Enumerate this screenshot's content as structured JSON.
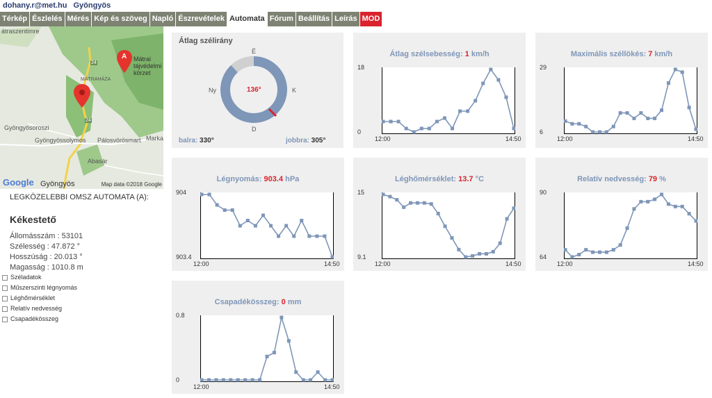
{
  "header": {
    "user": "dohany.r@met.hu",
    "location": "Gyöngyös"
  },
  "nav": [
    {
      "label": "Térkép",
      "state": "normal"
    },
    {
      "label": "Észlelés",
      "state": "normal"
    },
    {
      "label": "Mérés",
      "state": "normal"
    },
    {
      "label": "Kép és szöveg",
      "state": "normal"
    },
    {
      "label": "Napló",
      "state": "normal"
    },
    {
      "label": "Észrevételek",
      "state": "normal"
    },
    {
      "label": "Automata",
      "state": "active"
    },
    {
      "label": "Fórum",
      "state": "normal"
    },
    {
      "label": "Beállítás",
      "state": "normal"
    },
    {
      "label": "Leírás",
      "state": "normal"
    },
    {
      "label": "MOD",
      "state": "red"
    }
  ],
  "map": {
    "labels": [
      "átraszentimre",
      "Mátrai tájvédelmi körzet",
      "MÁTRAHÁZA",
      "Gyöngyösoroszi",
      "Gyöngyössolymos",
      "Pálosvörösmart",
      "Marka",
      "Abasár",
      "Gyöngyös",
      "24",
      "24"
    ],
    "credit": "Map data ©2018 Google",
    "brand": "Google",
    "marker_label": "A"
  },
  "sidebar": {
    "title": "LEGKÖZELEBBI OMSZ AUTOMATA (A):",
    "station": "Kékestető",
    "info": [
      "Állomásszám : 53101",
      "Szélesség : 47.872 °",
      "Hosszúság : 20.013 °",
      "Magasság : 1010.8 m"
    ],
    "checkboxes": [
      "Széladatok",
      "Műszerszinti légnyomás",
      "Léghőmérséklet",
      "Relatív nedvesség",
      "Csapadékösszeg"
    ]
  },
  "wind_direction": {
    "title": "Átlag szélirány",
    "value": "136°",
    "north": "É",
    "east": "K",
    "south": "D",
    "west": "Ny",
    "left_label": "balra:",
    "left_value": "330°",
    "right_label": "jobbra:",
    "right_value": "305°"
  },
  "chart_data": [
    {
      "id": "wind-speed",
      "type": "line",
      "title": "Átlag szélsebesség:",
      "value": "1",
      "unit": "km/h",
      "ymin_label": "0",
      "ymax_label": "18",
      "ylim": [
        0,
        18
      ],
      "x_start": "12:00",
      "x_end": "14:50",
      "values": [
        3,
        3,
        3,
        1,
        0,
        1,
        1,
        3,
        4,
        1,
        6,
        6,
        9,
        14,
        18,
        15,
        10,
        1
      ]
    },
    {
      "id": "gust",
      "type": "line",
      "title": "Maximális széllökés:",
      "value": "7",
      "unit": "km/h",
      "ymin_label": "6",
      "ymax_label": "29",
      "ylim": [
        6,
        29
      ],
      "x_start": "12:00",
      "x_end": "14:50",
      "values": [
        10,
        9,
        9,
        8,
        6,
        6,
        6,
        8,
        13,
        13,
        11,
        13,
        11,
        11,
        14,
        24,
        29,
        28,
        15,
        7
      ]
    },
    {
      "id": "pressure",
      "type": "line",
      "title": "Légnyomás:",
      "value": "903.4",
      "unit": "hPa",
      "ymin_label": "903.4",
      "ymax_label": "904",
      "ylim": [
        903.4,
        904
      ],
      "x_start": "12:00",
      "x_end": "14:50",
      "values": [
        904,
        904,
        903.9,
        903.85,
        903.85,
        903.7,
        903.75,
        903.7,
        903.8,
        903.7,
        903.6,
        903.7,
        903.6,
        903.75,
        903.6,
        903.6,
        903.6,
        903.4
      ]
    },
    {
      "id": "temperature",
      "type": "line",
      "title": "Léghőmérséklet:",
      "value": "13.7",
      "unit": "°C",
      "ymin_label": "9.1",
      "ymax_label": "15",
      "ylim": [
        9.1,
        15
      ],
      "x_start": "12:00",
      "x_end": "14:50",
      "values": [
        15,
        14.8,
        14.5,
        13.8,
        14.2,
        14.2,
        14.2,
        14.1,
        13.2,
        12.0,
        10.9,
        9.8,
        9.1,
        9.2,
        9.4,
        9.4,
        9.6,
        10.4,
        12.7,
        13.7
      ]
    },
    {
      "id": "humidity",
      "type": "line",
      "title": "Relatív nedvesség:",
      "value": "79",
      "unit": "%",
      "ymin_label": "64",
      "ymax_label": "90",
      "ylim": [
        64,
        90
      ],
      "x_start": "12:00",
      "x_end": "14:50",
      "values": [
        67,
        64,
        65,
        67,
        66,
        66,
        66,
        67,
        69,
        76,
        84,
        87,
        87,
        88,
        90,
        86,
        85,
        85,
        82,
        79
      ]
    },
    {
      "id": "precipitation",
      "type": "line",
      "title": "Csapadékösszeg:",
      "value": "0",
      "unit": "mm",
      "ymin_label": "0",
      "ymax_label": "0.8",
      "ylim": [
        0,
        0.8
      ],
      "x_start": "12:00",
      "x_end": "14:50",
      "values": [
        0,
        0,
        0,
        0,
        0,
        0,
        0,
        0,
        0,
        0.3,
        0.35,
        0.8,
        0.5,
        0.1,
        0,
        0,
        0.1,
        0,
        0
      ]
    }
  ],
  "colors": {
    "accent": "#7e96b8",
    "value_red": "#d9232d",
    "nav_bg": "#7d8273",
    "panel_bg": "#efefef",
    "ring": "#7e96b8",
    "ring_gap": "#d0d0d0"
  }
}
